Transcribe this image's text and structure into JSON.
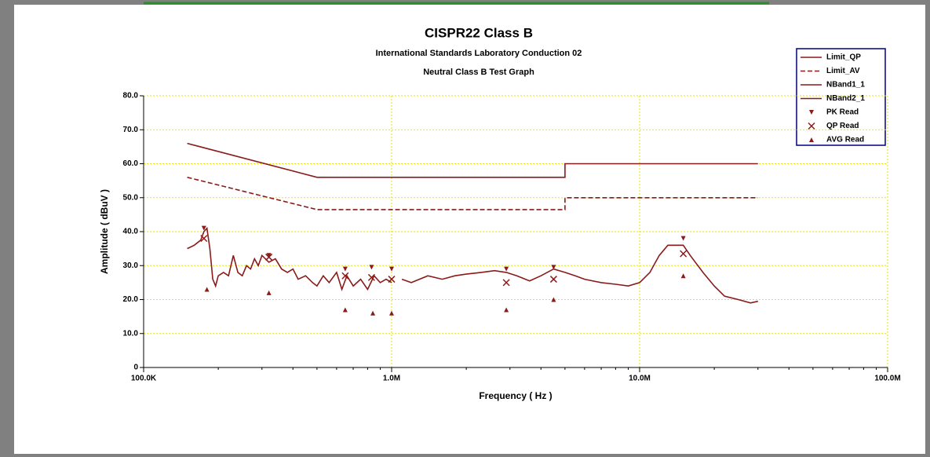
{
  "chart_data": {
    "type": "line",
    "title": "CISPR22 Class B",
    "subtitle": "International Standards Laboratory Conduction 02",
    "subtitle2": "Neutral Class B Test Graph",
    "xlabel": "Frequency ( Hz )",
    "ylabel": "Amplitude ( dBuV )",
    "xscale": "log",
    "xlim": [
      100000,
      100000000
    ],
    "xticks": [
      {
        "value": 100000,
        "label": "100.0K"
      },
      {
        "value": 1000000,
        "label": "1.0M"
      },
      {
        "value": 10000000,
        "label": "10.0M"
      },
      {
        "value": 100000000,
        "label": "100.0M"
      }
    ],
    "ylim": [
      0,
      80
    ],
    "yticks": [
      0,
      {
        "value": 10,
        "label": "10.0"
      },
      {
        "value": 20,
        "label": "20.0"
      },
      {
        "value": 30,
        "label": "30.0"
      },
      {
        "value": 40,
        "label": "40.0"
      },
      {
        "value": 50,
        "label": "50.0"
      },
      {
        "value": 60,
        "label": "60.0"
      },
      {
        "value": 70,
        "label": "70.0"
      },
      {
        "value": 80,
        "label": "80.0"
      }
    ],
    "grid": true,
    "legend": "top-right",
    "series": [
      {
        "name": "Limit_QP",
        "color": "#8b1a1a",
        "style": "solid",
        "x": [
          150000,
          500000,
          5000000,
          5000000,
          30000000
        ],
        "values": [
          66,
          56,
          56,
          60,
          60
        ]
      },
      {
        "name": "Limit_AV",
        "color": "#8b1a1a",
        "style": "dashed",
        "x": [
          150000,
          500000,
          5000000,
          5000000,
          30000000
        ],
        "values": [
          56,
          46.5,
          46.5,
          50,
          50
        ]
      },
      {
        "name": "NBand1_1",
        "color": "#8b1a1a",
        "style": "solid",
        "x": [
          150000,
          160000,
          170000,
          175000,
          180000,
          185000,
          190000,
          195000,
          200000,
          210000,
          220000,
          230000,
          240000,
          250000,
          260000,
          270000,
          280000,
          290000,
          300000,
          320000,
          340000,
          360000,
          380000,
          400000,
          420000,
          450000,
          480000,
          500000,
          530000,
          560000,
          600000,
          630000,
          660000,
          700000,
          750000,
          800000,
          850000,
          900000,
          950000,
          1000000
        ],
        "values": [
          35,
          36,
          37.5,
          40,
          41,
          35,
          26,
          24,
          27,
          28,
          27,
          33,
          28,
          27,
          30,
          29,
          32,
          30,
          33,
          31,
          32,
          29,
          28,
          29,
          26,
          27,
          25,
          24,
          27,
          25,
          28,
          23,
          27,
          24,
          26,
          23,
          27,
          25,
          26,
          25
        ]
      },
      {
        "name": "NBand2_1",
        "color": "#8b1a1a",
        "style": "solid",
        "x": [
          1100000,
          1200000,
          1400000,
          1600000,
          1800000,
          2000000,
          2300000,
          2600000,
          2900000,
          3200000,
          3600000,
          4000000,
          4500000,
          5000000,
          5500000,
          6000000,
          7000000,
          8000000,
          9000000,
          10000000,
          11000000,
          12000000,
          13000000,
          14000000,
          15000000,
          16000000,
          18000000,
          20000000,
          22000000,
          25000000,
          28000000,
          30000000
        ],
        "values": [
          26,
          25,
          27,
          26,
          27,
          27.5,
          28,
          28.5,
          28,
          27,
          25.5,
          27,
          29,
          28,
          27,
          26,
          25,
          24.5,
          24,
          25,
          28,
          33,
          36,
          36,
          36,
          33,
          28,
          24,
          21,
          20,
          19,
          19.5
        ]
      },
      {
        "name": "PK Read",
        "color": "#8b1a1a",
        "style": "marker",
        "marker": "triangle-down",
        "x": [
          175000,
          320000,
          650000,
          830000,
          1000000,
          2900000,
          4500000,
          15000000
        ],
        "values": [
          41,
          33,
          29,
          29.5,
          29,
          29,
          29.5,
          38
        ]
      },
      {
        "name": "QP Read",
        "color": "#8b1a1a",
        "style": "marker",
        "marker": "x",
        "x": [
          175000,
          320000,
          650000,
          830000,
          1000000,
          2900000,
          4500000,
          15000000
        ],
        "values": [
          38,
          32.5,
          27,
          26.5,
          26,
          25,
          26,
          33.5
        ]
      },
      {
        "name": "AVG Read",
        "color": "#8b1a1a",
        "style": "marker",
        "marker": "triangle-up",
        "x": [
          180000,
          320000,
          650000,
          840000,
          1000000,
          2900000,
          4500000,
          15000000
        ],
        "values": [
          23,
          22,
          17,
          16,
          16,
          17,
          20,
          27
        ]
      }
    ]
  }
}
